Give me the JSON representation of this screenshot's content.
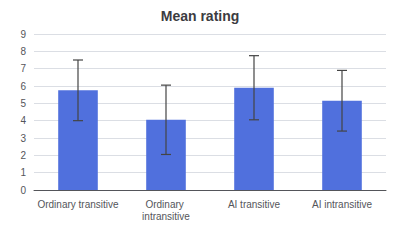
{
  "chart_data": {
    "type": "bar",
    "title": "Mean rating",
    "categories": [
      "Ordinary transitive",
      "Ordinary intransitive",
      "AI transitive",
      "AI intransitive"
    ],
    "values": [
      5.75,
      4.05,
      5.9,
      5.15
    ],
    "errors": [
      1.75,
      2.0,
      1.85,
      1.75
    ],
    "ylim": [
      0,
      9
    ],
    "yticks": [
      0,
      1,
      2,
      3,
      4,
      5,
      6,
      7,
      8,
      9
    ],
    "grid": true
  }
}
